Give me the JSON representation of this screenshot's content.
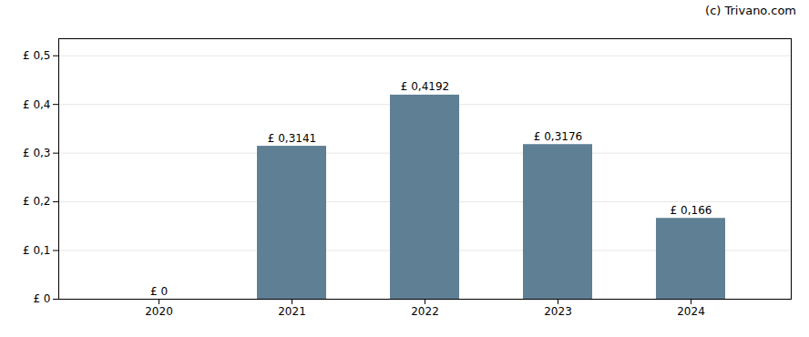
{
  "chart_data": {
    "type": "bar",
    "categories": [
      "2020",
      "2021",
      "2022",
      "2023",
      "2024"
    ],
    "values": [
      0.0,
      0.3141,
      0.4192,
      0.3176,
      0.166
    ],
    "value_labels": [
      "£ 0",
      "£ 0,3141",
      "£ 0,4192",
      "£ 0,3176",
      "£ 0,166"
    ],
    "data_labels": true,
    "color": "#5f7f94",
    "ylim": [
      0,
      0.535
    ],
    "yticks": [
      {
        "value": 0.0,
        "label": "£ 0"
      },
      {
        "value": 0.1,
        "label": "£ 0,1"
      },
      {
        "value": 0.2,
        "label": "£ 0,2"
      },
      {
        "value": 0.3,
        "label": "£ 0,3"
      },
      {
        "value": 0.4,
        "label": "£ 0,4"
      },
      {
        "value": 0.5,
        "label": "£ 0,5"
      }
    ],
    "grid": true,
    "annotations": [
      "(c) Trivano.com"
    ]
  }
}
